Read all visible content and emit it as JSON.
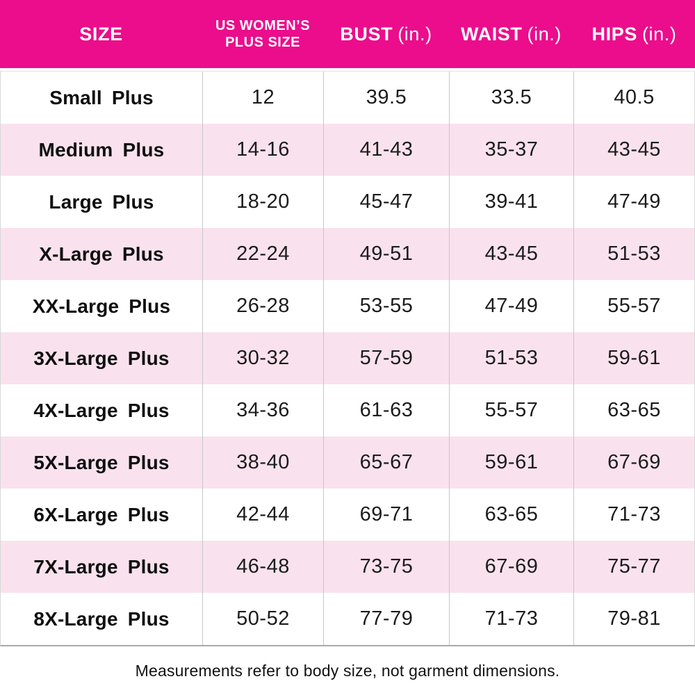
{
  "chart_data": {
    "type": "table",
    "columns": [
      {
        "key": "size",
        "label": "SIZE"
      },
      {
        "key": "us_plus_size",
        "label": "US WOMEN’S PLUS SIZE",
        "lines": [
          "US WOMEN’S",
          "PLUS SIZE"
        ]
      },
      {
        "key": "bust",
        "label": "BUST",
        "unit": "(in.)"
      },
      {
        "key": "waist",
        "label": "WAIST",
        "unit": "(in.)"
      },
      {
        "key": "hips",
        "label": "HIPS",
        "unit": "(in.)"
      }
    ],
    "rows": [
      {
        "size": "Small Plus",
        "us_plus_size": "12",
        "bust": "39.5",
        "waist": "33.5",
        "hips": "40.5"
      },
      {
        "size": "Medium Plus",
        "us_plus_size": "14-16",
        "bust": "41-43",
        "waist": "35-37",
        "hips": "43-45"
      },
      {
        "size": "Large Plus",
        "us_plus_size": "18-20",
        "bust": "45-47",
        "waist": "39-41",
        "hips": "47-49"
      },
      {
        "size": "X-Large Plus",
        "us_plus_size": "22-24",
        "bust": "49-51",
        "waist": "43-45",
        "hips": "51-53"
      },
      {
        "size": "XX-Large Plus",
        "us_plus_size": "26-28",
        "bust": "53-55",
        "waist": "47-49",
        "hips": "55-57"
      },
      {
        "size": "3X-Large Plus",
        "us_plus_size": "30-32",
        "bust": "57-59",
        "waist": "51-53",
        "hips": "59-61"
      },
      {
        "size": "4X-Large Plus",
        "us_plus_size": "34-36",
        "bust": "61-63",
        "waist": "55-57",
        "hips": "63-65"
      },
      {
        "size": "5X-Large Plus",
        "us_plus_size": "38-40",
        "bust": "65-67",
        "waist": "59-61",
        "hips": "67-69"
      },
      {
        "size": "6X-Large Plus",
        "us_plus_size": "42-44",
        "bust": "69-71",
        "waist": "63-65",
        "hips": "71-73"
      },
      {
        "size": "7X-Large Plus",
        "us_plus_size": "46-48",
        "bust": "73-75",
        "waist": "67-69",
        "hips": "75-77"
      },
      {
        "size": "8X-Large Plus",
        "us_plus_size": "50-52",
        "bust": "77-79",
        "waist": "71-73",
        "hips": "79-81"
      }
    ]
  },
  "footer": {
    "note": "Measurements refer to body size, not garment dimensions."
  },
  "colors": {
    "header_bg": "#EB0D8C",
    "row_alt_bg": "#F9E2ED",
    "grid_line": "#C6C6C6",
    "header_text": "#FFFFFF",
    "body_text": "#1C1C1C"
  }
}
